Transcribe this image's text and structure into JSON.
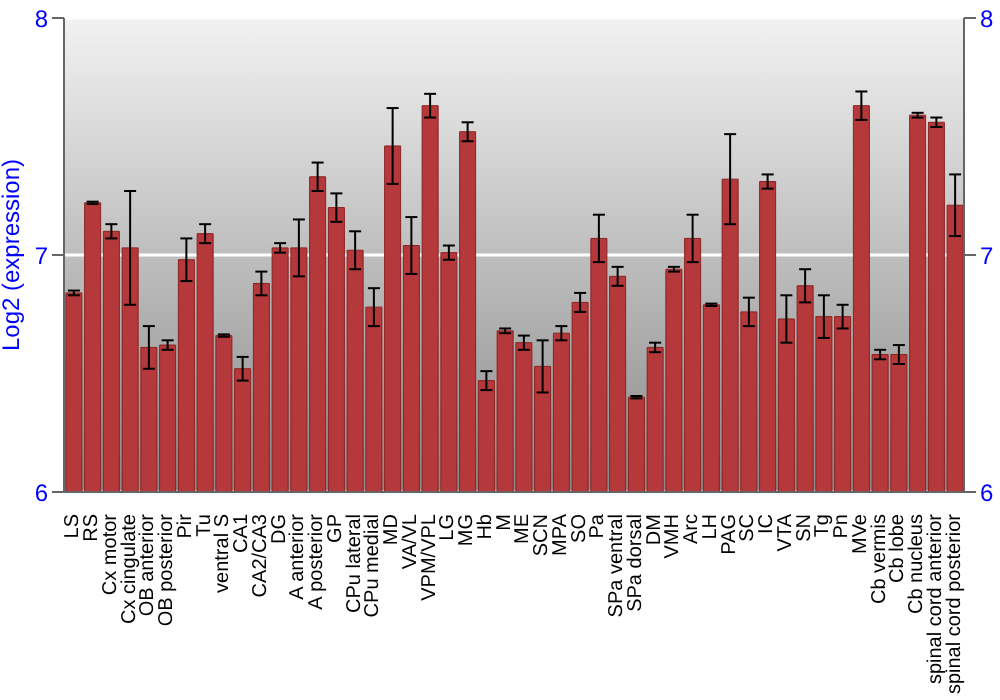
{
  "chart_data": {
    "type": "bar",
    "ylabel": "Log2 (expression)",
    "categories": [
      "LS",
      "RS",
      "Cx motor",
      "Cx cingulate",
      "OB anterior",
      "OB posterior",
      "Pir",
      "Tu",
      "ventral S",
      "CA1",
      "CA2/CA3",
      "DG",
      "A anterior",
      "A posterior",
      "GP",
      "CPu lateral",
      "CPu medial",
      "MD",
      "VA/VL",
      "VPM/VPL",
      "LG",
      "MG",
      "Hb",
      "M",
      "ME",
      "SCN",
      "MPA",
      "SO",
      "Pa",
      "SPa ventral",
      "SPa dorsal",
      "DM",
      "VMH",
      "Arc",
      "LH",
      "PAG",
      "SC",
      "IC",
      "VTA",
      "SN",
      "Tg",
      "Pn",
      "MVe",
      "Cb vermis",
      "Cb lobe",
      "Cb nucleus",
      "spinal cord anterior",
      "spinal cord posterior"
    ],
    "values": [
      6.84,
      7.22,
      7.1,
      7.03,
      6.61,
      6.62,
      6.98,
      7.09,
      6.66,
      6.52,
      6.88,
      7.03,
      7.03,
      7.33,
      7.2,
      7.02,
      6.78,
      7.46,
      7.04,
      7.63,
      7.01,
      7.52,
      6.47,
      6.68,
      6.63,
      6.53,
      6.67,
      6.8,
      7.07,
      6.91,
      6.4,
      6.61,
      6.94,
      7.07,
      6.79,
      7.32,
      6.76,
      7.31,
      6.73,
      6.87,
      6.74,
      6.74,
      7.63,
      6.58,
      6.58,
      7.59,
      7.56,
      7.21
    ],
    "errors": [
      0.01,
      0.005,
      0.03,
      0.24,
      0.09,
      0.02,
      0.09,
      0.04,
      0.005,
      0.05,
      0.05,
      0.02,
      0.12,
      0.06,
      0.06,
      0.08,
      0.08,
      0.16,
      0.12,
      0.05,
      0.03,
      0.04,
      0.04,
      0.01,
      0.03,
      0.11,
      0.03,
      0.04,
      0.1,
      0.04,
      0.005,
      0.02,
      0.01,
      0.1,
      0.005,
      0.19,
      0.06,
      0.03,
      0.1,
      0.07,
      0.09,
      0.05,
      0.06,
      0.02,
      0.04,
      0.01,
      0.02,
      0.13
    ],
    "color": "#b5393a",
    "ylim": [
      6,
      8
    ],
    "yticks": [
      6,
      7,
      8
    ],
    "y2lim": [
      6,
      8
    ],
    "y2ticks": [
      6,
      7,
      8
    ],
    "grid": "y"
  }
}
